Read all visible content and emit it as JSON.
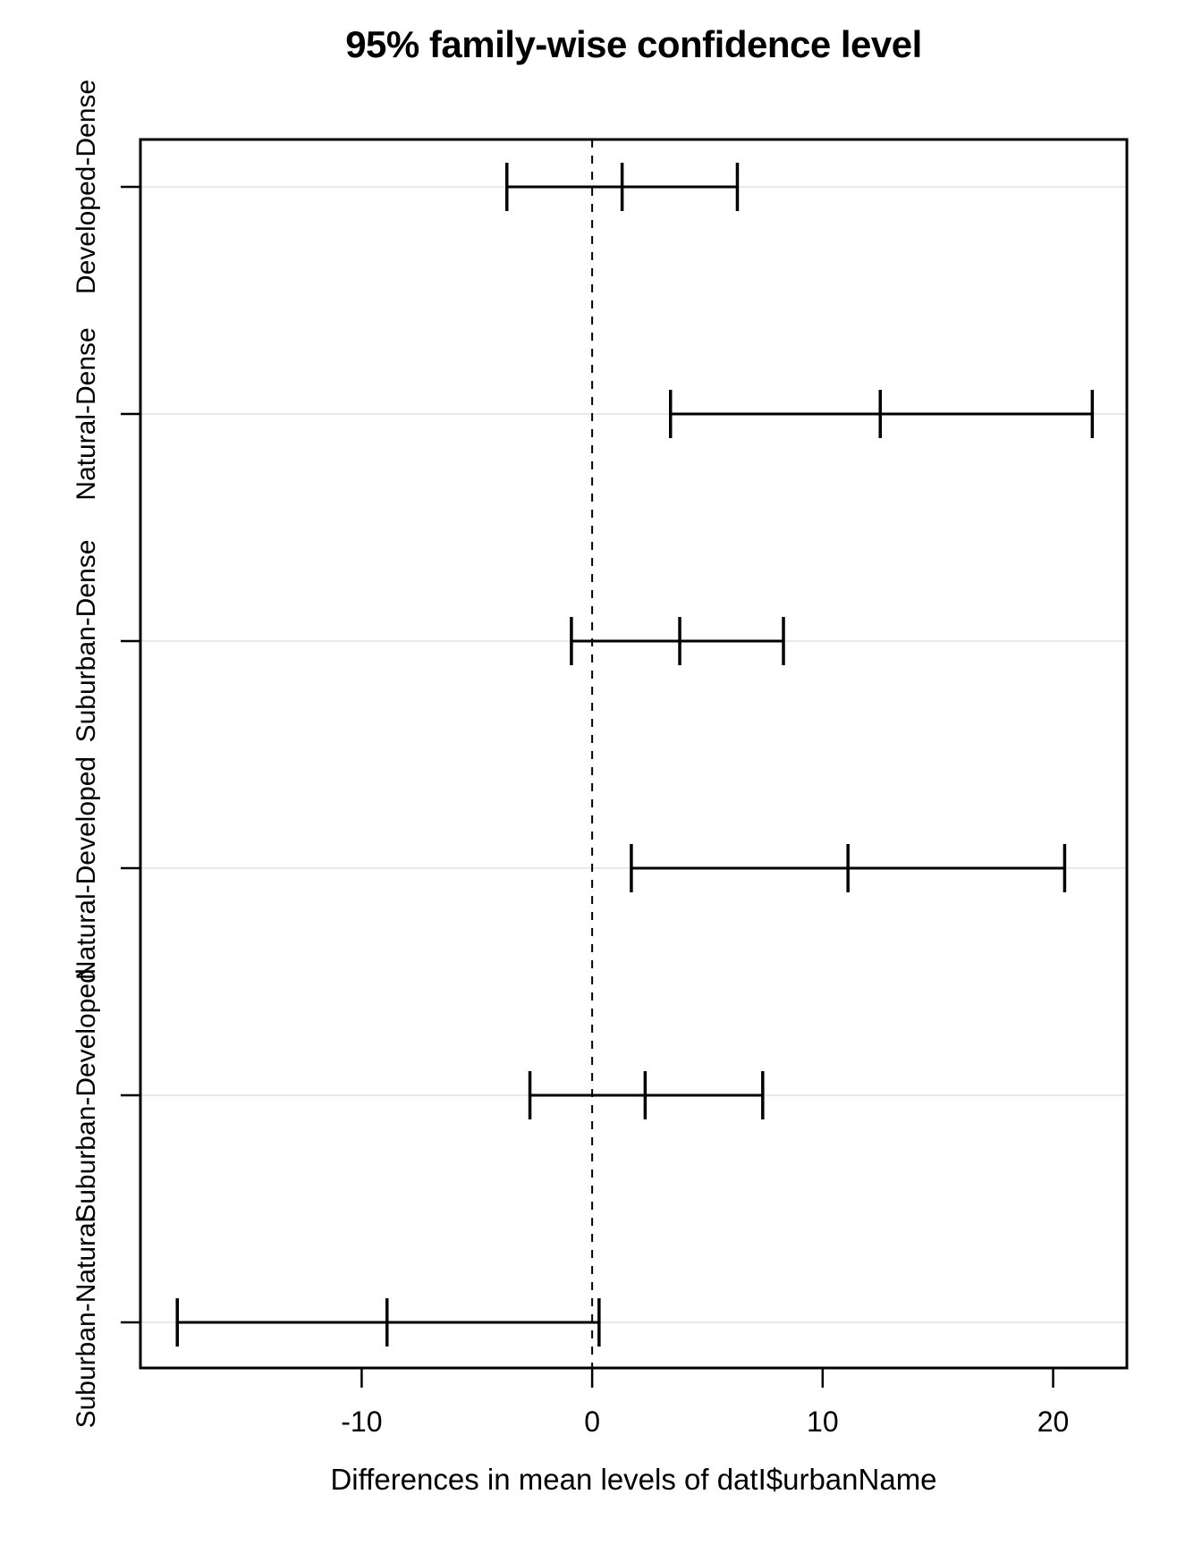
{
  "title": "95% family-wise confidence level",
  "x_axis": {
    "label": "Differences in mean levels of datI$urbanName",
    "tick_labels": [
      "-10",
      "0",
      "10",
      "20"
    ]
  },
  "chart_data": {
    "type": "errorbar",
    "orientation": "horizontal",
    "title": "95% family-wise confidence level",
    "xlabel": "Differences in mean levels of datI$urbanName",
    "ylabel": "",
    "categories": [
      "Developed-Dense",
      "Natural-Dense",
      "Suburban-Dense",
      "Natural-Developed",
      "Suburban-Developed",
      "Suburban-Natural"
    ],
    "series": [
      {
        "name": "difference-point-estimate",
        "values": [
          1.3,
          12.5,
          3.8,
          11.1,
          2.3,
          -8.9
        ]
      },
      {
        "name": "lower-95-ci",
        "values": [
          -3.7,
          3.4,
          -0.9,
          1.7,
          -2.7,
          -18.0
        ]
      },
      {
        "name": "upper-95-ci",
        "values": [
          6.3,
          21.7,
          8.3,
          20.5,
          7.4,
          0.3
        ]
      }
    ],
    "xticks": [
      -10,
      0,
      10,
      20
    ],
    "xlim": [
      -19.6,
      23.2
    ],
    "zero_reference_line": {
      "x": 0,
      "style": "dashed"
    },
    "grid": "horizontal-light-gray",
    "legend": "none",
    "colors": {
      "line": "#000000",
      "gridline": "#e2e2e2",
      "background": "#ffffff"
    }
  }
}
